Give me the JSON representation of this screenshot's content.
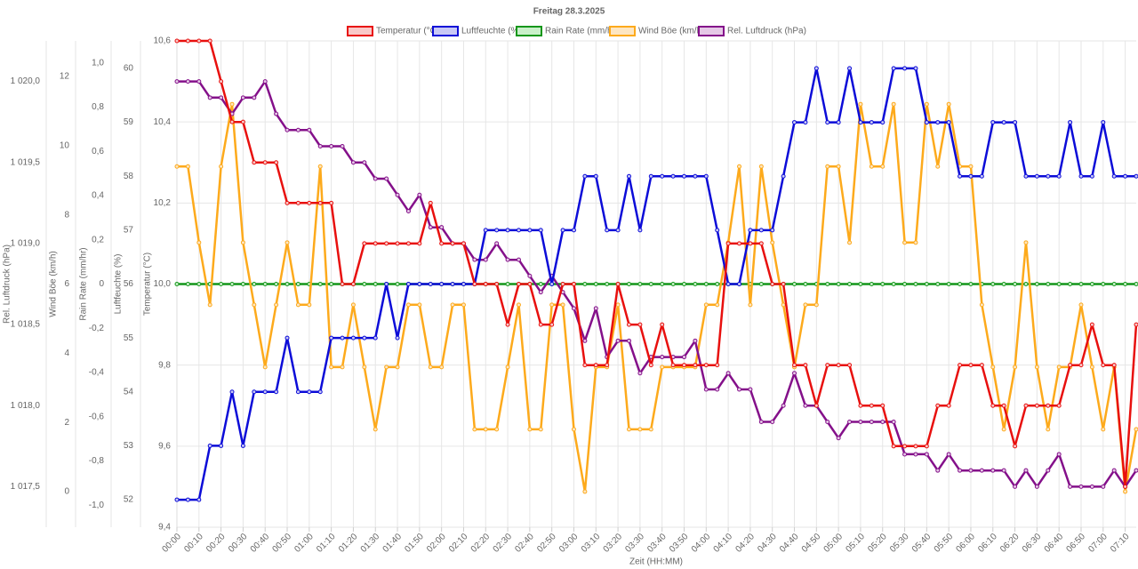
{
  "chart_data": {
    "type": "line",
    "title": "Freitag 28.3.2025",
    "xlabel": "Zeit (HH:MM)",
    "categories": [
      "00:00",
      null,
      "00:10",
      null,
      "00:20",
      null,
      "00:30",
      null,
      "00:40",
      null,
      "00:50",
      null,
      "01:00",
      null,
      "01:10",
      null,
      "01:20",
      null,
      "01:30",
      null,
      "01:40",
      null,
      "01:50",
      null,
      "02:00",
      null,
      "02:10",
      null,
      "02:20",
      null,
      "02:30",
      null,
      "02:40",
      null,
      "02:50",
      null,
      "03:00",
      null,
      "03:10",
      null,
      "03:20",
      null,
      "03:30",
      null,
      "03:40",
      null,
      "03:50",
      null,
      "04:00",
      null,
      "04:10",
      null,
      "04:20",
      null,
      "04:30",
      null,
      "04:40",
      null,
      "04:50",
      null,
      "05:00",
      null,
      "05:10",
      null,
      "05:20",
      null,
      "05:30",
      null,
      "05:40",
      null,
      "05:50",
      null,
      "06:00",
      null,
      "06:10",
      null,
      "06:20",
      null,
      "06:30",
      null,
      "06:40",
      null,
      "06:50",
      null,
      "07:00",
      null,
      "07:10",
      null
    ],
    "grid": true,
    "yaxes": [
      {
        "label": "Temperatur (°C)",
        "ylim": [
          9.4,
          10.6
        ],
        "yticks": [
          {
            "value": 9.4,
            "label": "9,4"
          },
          {
            "value": 9.6,
            "label": "9,6"
          },
          {
            "value": 9.8,
            "label": "9,8"
          },
          {
            "value": 10.0,
            "label": "10,0"
          },
          {
            "value": 10.2,
            "label": "10,2"
          },
          {
            "value": 10.4,
            "label": "10,4"
          },
          {
            "value": 10.6,
            "label": "10,6"
          }
        ]
      },
      {
        "label": "Luftfeuchte (%)",
        "ylim": [
          51.49,
          60.51
        ],
        "yticks": [
          52,
          53,
          54,
          55,
          56,
          57,
          58,
          59,
          60
        ]
      },
      {
        "label": "Rain Rate (mm/hr)",
        "ylim": [
          -1.1,
          1.1
        ],
        "yticks": [
          {
            "value": -1.0,
            "label": "-1,0"
          },
          {
            "value": -0.8,
            "label": "-0,8"
          },
          {
            "value": -0.6,
            "label": "-0,6"
          },
          {
            "value": -0.4,
            "label": "-0,4"
          },
          {
            "value": -0.2,
            "label": "-0,2"
          },
          0,
          {
            "value": 0.2,
            "label": "0,2"
          },
          {
            "value": 0.4,
            "label": "0,4"
          },
          {
            "value": 0.6,
            "label": "0,6"
          },
          {
            "value": 0.8,
            "label": "0,8"
          },
          {
            "value": 1.0,
            "label": "1,0"
          }
        ]
      },
      {
        "label": "Wind Böe (km/h)",
        "ylim": [
          -1.03,
          13.03
        ],
        "yticks": [
          0,
          2,
          4,
          6,
          8,
          10,
          12
        ]
      },
      {
        "label": "Rel. Luftdruck (hPa)",
        "ylim": [
          1017.25,
          1020.25
        ],
        "yticks": [
          {
            "value": 1017.5,
            "label": "1 017,5"
          },
          {
            "value": 1018.0,
            "label": "1 018,0"
          },
          {
            "value": 1018.5,
            "label": "1 018,5"
          },
          {
            "value": 1019.0,
            "label": "1 019,0"
          },
          {
            "value": 1019.5,
            "label": "1 019,5"
          },
          {
            "value": 1020.0,
            "label": "1 020,0"
          }
        ]
      }
    ],
    "series": [
      {
        "name": "Temperatur (°C)",
        "color": "#e8100e",
        "fill": "#f9c8c8",
        "axis": 0,
        "values": [
          10.6,
          10.6,
          10.6,
          10.6,
          10.5,
          10.4,
          10.4,
          10.3,
          10.3,
          10.3,
          10.2,
          10.2,
          10.2,
          10.2,
          10.2,
          10.0,
          10.0,
          10.1,
          10.1,
          10.1,
          10.1,
          10.1,
          10.1,
          10.2,
          10.1,
          10.1,
          10.1,
          10.0,
          10.0,
          10.0,
          9.9,
          10.0,
          10.0,
          9.9,
          9.9,
          10.0,
          10.0,
          9.8,
          9.8,
          9.8,
          10.0,
          9.9,
          9.9,
          9.8,
          9.9,
          9.8,
          9.8,
          9.8,
          9.8,
          9.8,
          10.1,
          10.1,
          10.1,
          10.1,
          10.0,
          10.0,
          9.8,
          9.8,
          9.7,
          9.8,
          9.8,
          9.8,
          9.7,
          9.7,
          9.7,
          9.6,
          9.6,
          9.6,
          9.6,
          9.7,
          9.7,
          9.8,
          9.8,
          9.8,
          9.7,
          9.7,
          9.6,
          9.7,
          9.7,
          9.7,
          9.7,
          9.8,
          9.8,
          9.9,
          9.8,
          9.8,
          9.5,
          9.9
        ]
      },
      {
        "name": "Luftfeuchte (%)",
        "color": "#0c0cd8",
        "fill": "#c8c8f5",
        "axis": 1,
        "values": [
          52,
          52,
          52,
          53,
          53,
          54,
          53,
          54,
          54,
          54,
          55,
          54,
          54,
          54,
          55,
          55,
          55,
          55,
          55,
          56,
          55,
          56,
          56,
          56,
          56,
          56,
          56,
          56,
          57,
          57,
          57,
          57,
          57,
          57,
          56,
          57,
          57,
          58,
          58,
          57,
          57,
          58,
          57,
          58,
          58,
          58,
          58,
          58,
          58,
          57,
          56,
          56,
          57,
          57,
          57,
          58,
          59,
          59,
          60,
          59,
          59,
          60,
          59,
          59,
          59,
          60,
          60,
          60,
          59,
          59,
          59,
          58,
          58,
          58,
          59,
          59,
          59,
          58,
          58,
          58,
          58,
          59,
          58,
          58,
          59,
          58,
          58,
          58
        ]
      },
      {
        "name": "Rain Rate (mm/hr)",
        "color": "#13961a",
        "fill": "#c9f0c9",
        "axis": 2,
        "values": [
          0,
          0,
          0,
          0,
          0,
          0,
          0,
          0,
          0,
          0,
          0,
          0,
          0,
          0,
          0,
          0,
          0,
          0,
          0,
          0,
          0,
          0,
          0,
          0,
          0,
          0,
          0,
          0,
          0,
          0,
          0,
          0,
          0,
          0,
          0,
          0,
          0,
          0,
          0,
          0,
          0,
          0,
          0,
          0,
          0,
          0,
          0,
          0,
          0,
          0,
          0,
          0,
          0,
          0,
          0,
          0,
          0,
          0,
          0,
          0,
          0,
          0,
          0,
          0,
          0,
          0,
          0,
          0,
          0,
          0,
          0,
          0,
          0,
          0,
          0,
          0,
          0,
          0,
          0,
          0,
          0,
          0,
          0,
          0,
          0,
          0,
          0,
          0
        ]
      },
      {
        "name": "Wind Böe (km/h)",
        "color": "#fdaa1c",
        "fill": "#fde6c2",
        "axis": 3,
        "values": [
          9.4,
          9.4,
          7.2,
          5.4,
          9.4,
          11.2,
          7.2,
          5.4,
          3.6,
          5.4,
          7.2,
          5.4,
          5.4,
          9.4,
          3.6,
          3.6,
          5.4,
          3.6,
          1.8,
          3.6,
          3.6,
          5.4,
          5.4,
          3.6,
          3.6,
          5.4,
          5.4,
          1.8,
          1.8,
          1.8,
          3.6,
          5.4,
          1.8,
          1.8,
          5.4,
          5.4,
          1.8,
          0,
          3.6,
          3.6,
          5.4,
          1.8,
          1.8,
          1.8,
          3.6,
          3.6,
          3.6,
          3.6,
          5.4,
          5.4,
          7.2,
          9.4,
          5.4,
          9.4,
          7.2,
          5.4,
          3.6,
          5.4,
          5.4,
          9.4,
          9.4,
          7.2,
          11.2,
          9.4,
          9.4,
          11.2,
          7.2,
          7.2,
          11.2,
          9.4,
          11.2,
          9.4,
          9.4,
          5.4,
          3.6,
          1.8,
          3.6,
          7.2,
          3.6,
          1.8,
          3.6,
          3.6,
          5.4,
          3.6,
          1.8,
          3.6,
          0,
          1.8
        ]
      },
      {
        "name": "Rel. Luftdruck (hPa)",
        "color": "#84108a",
        "fill": "#e5c8e6",
        "axis": 4,
        "values": [
          1020.0,
          1020.0,
          1020.0,
          1019.9,
          1019.9,
          1019.8,
          1019.9,
          1019.9,
          1020.0,
          1019.8,
          1019.7,
          1019.7,
          1019.7,
          1019.6,
          1019.6,
          1019.6,
          1019.5,
          1019.5,
          1019.4,
          1019.4,
          1019.3,
          1019.2,
          1019.3,
          1019.1,
          1019.1,
          1019.0,
          1019.0,
          1018.9,
          1018.9,
          1019.0,
          1018.9,
          1018.9,
          1018.8,
          1018.7,
          1018.8,
          1018.7,
          1018.6,
          1018.4,
          1018.6,
          1018.3,
          1018.4,
          1018.4,
          1018.2,
          1018.3,
          1018.3,
          1018.3,
          1018.3,
          1018.4,
          1018.1,
          1018.1,
          1018.2,
          1018.1,
          1018.1,
          1017.9,
          1017.9,
          1018.0,
          1018.2,
          1018.0,
          1018.0,
          1017.9,
          1017.8,
          1017.9,
          1017.9,
          1017.9,
          1017.9,
          1017.9,
          1017.7,
          1017.7,
          1017.7,
          1017.6,
          1017.7,
          1017.6,
          1017.6,
          1017.6,
          1017.6,
          1017.6,
          1017.5,
          1017.6,
          1017.5,
          1017.6,
          1017.7,
          1017.5,
          1017.5,
          1017.5,
          1017.5,
          1017.6,
          1017.5,
          1017.6
        ]
      }
    ]
  }
}
